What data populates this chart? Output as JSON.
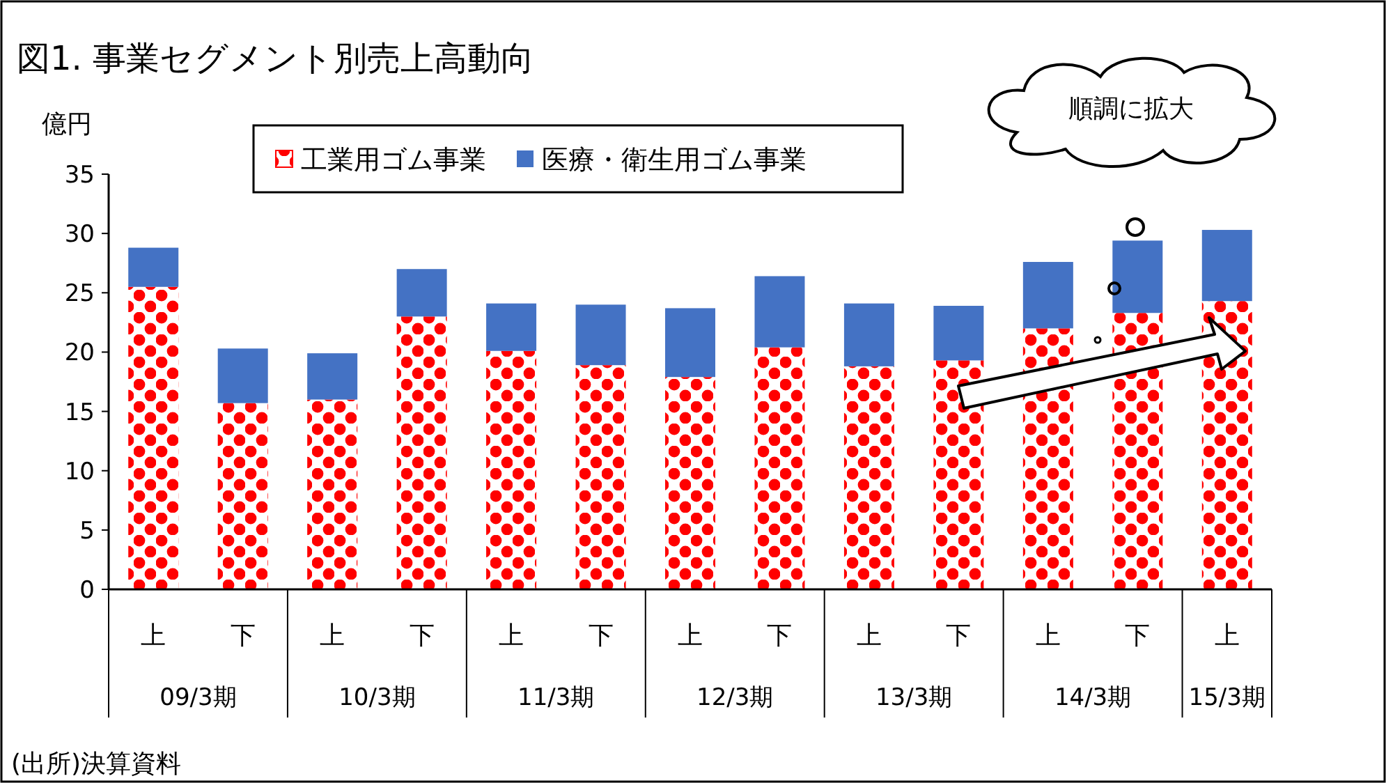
{
  "chart_data": {
    "type": "bar",
    "title": "図1. 事業セグメント別売上高動向",
    "ylabel": "億円",
    "categories": [
      "上",
      "下",
      "上",
      "下",
      "上",
      "下",
      "上",
      "下",
      "上",
      "下",
      "上",
      "下",
      "上"
    ],
    "stacked": true,
    "legend": "top",
    "grid": false,
    "ylim": [
      0,
      35
    ],
    "yticks": [
      0,
      5,
      10,
      15,
      20,
      25,
      30,
      35
    ],
    "series": [
      {
        "name": "工業用ゴム事業",
        "color": "#ff0000",
        "values": [
          25.5,
          15.7,
          16.0,
          23.0,
          20.1,
          18.9,
          17.9,
          20.4,
          18.8,
          19.3,
          22.0,
          23.3,
          24.3
        ]
      },
      {
        "name": "医療・衛生用ゴム事業",
        "color": "#4472c4",
        "values": [
          3.3,
          4.6,
          3.9,
          4.0,
          4.0,
          5.1,
          5.8,
          6.0,
          5.3,
          4.6,
          5.6,
          6.1,
          6.0
        ]
      }
    ],
    "annotations": [
      "09/3期",
      "10/3期",
      "11/3期",
      "12/3期",
      "13/3期",
      "14/3期",
      "15/3期",
      "順調に拡大",
      "(出所)決算資料"
    ]
  }
}
